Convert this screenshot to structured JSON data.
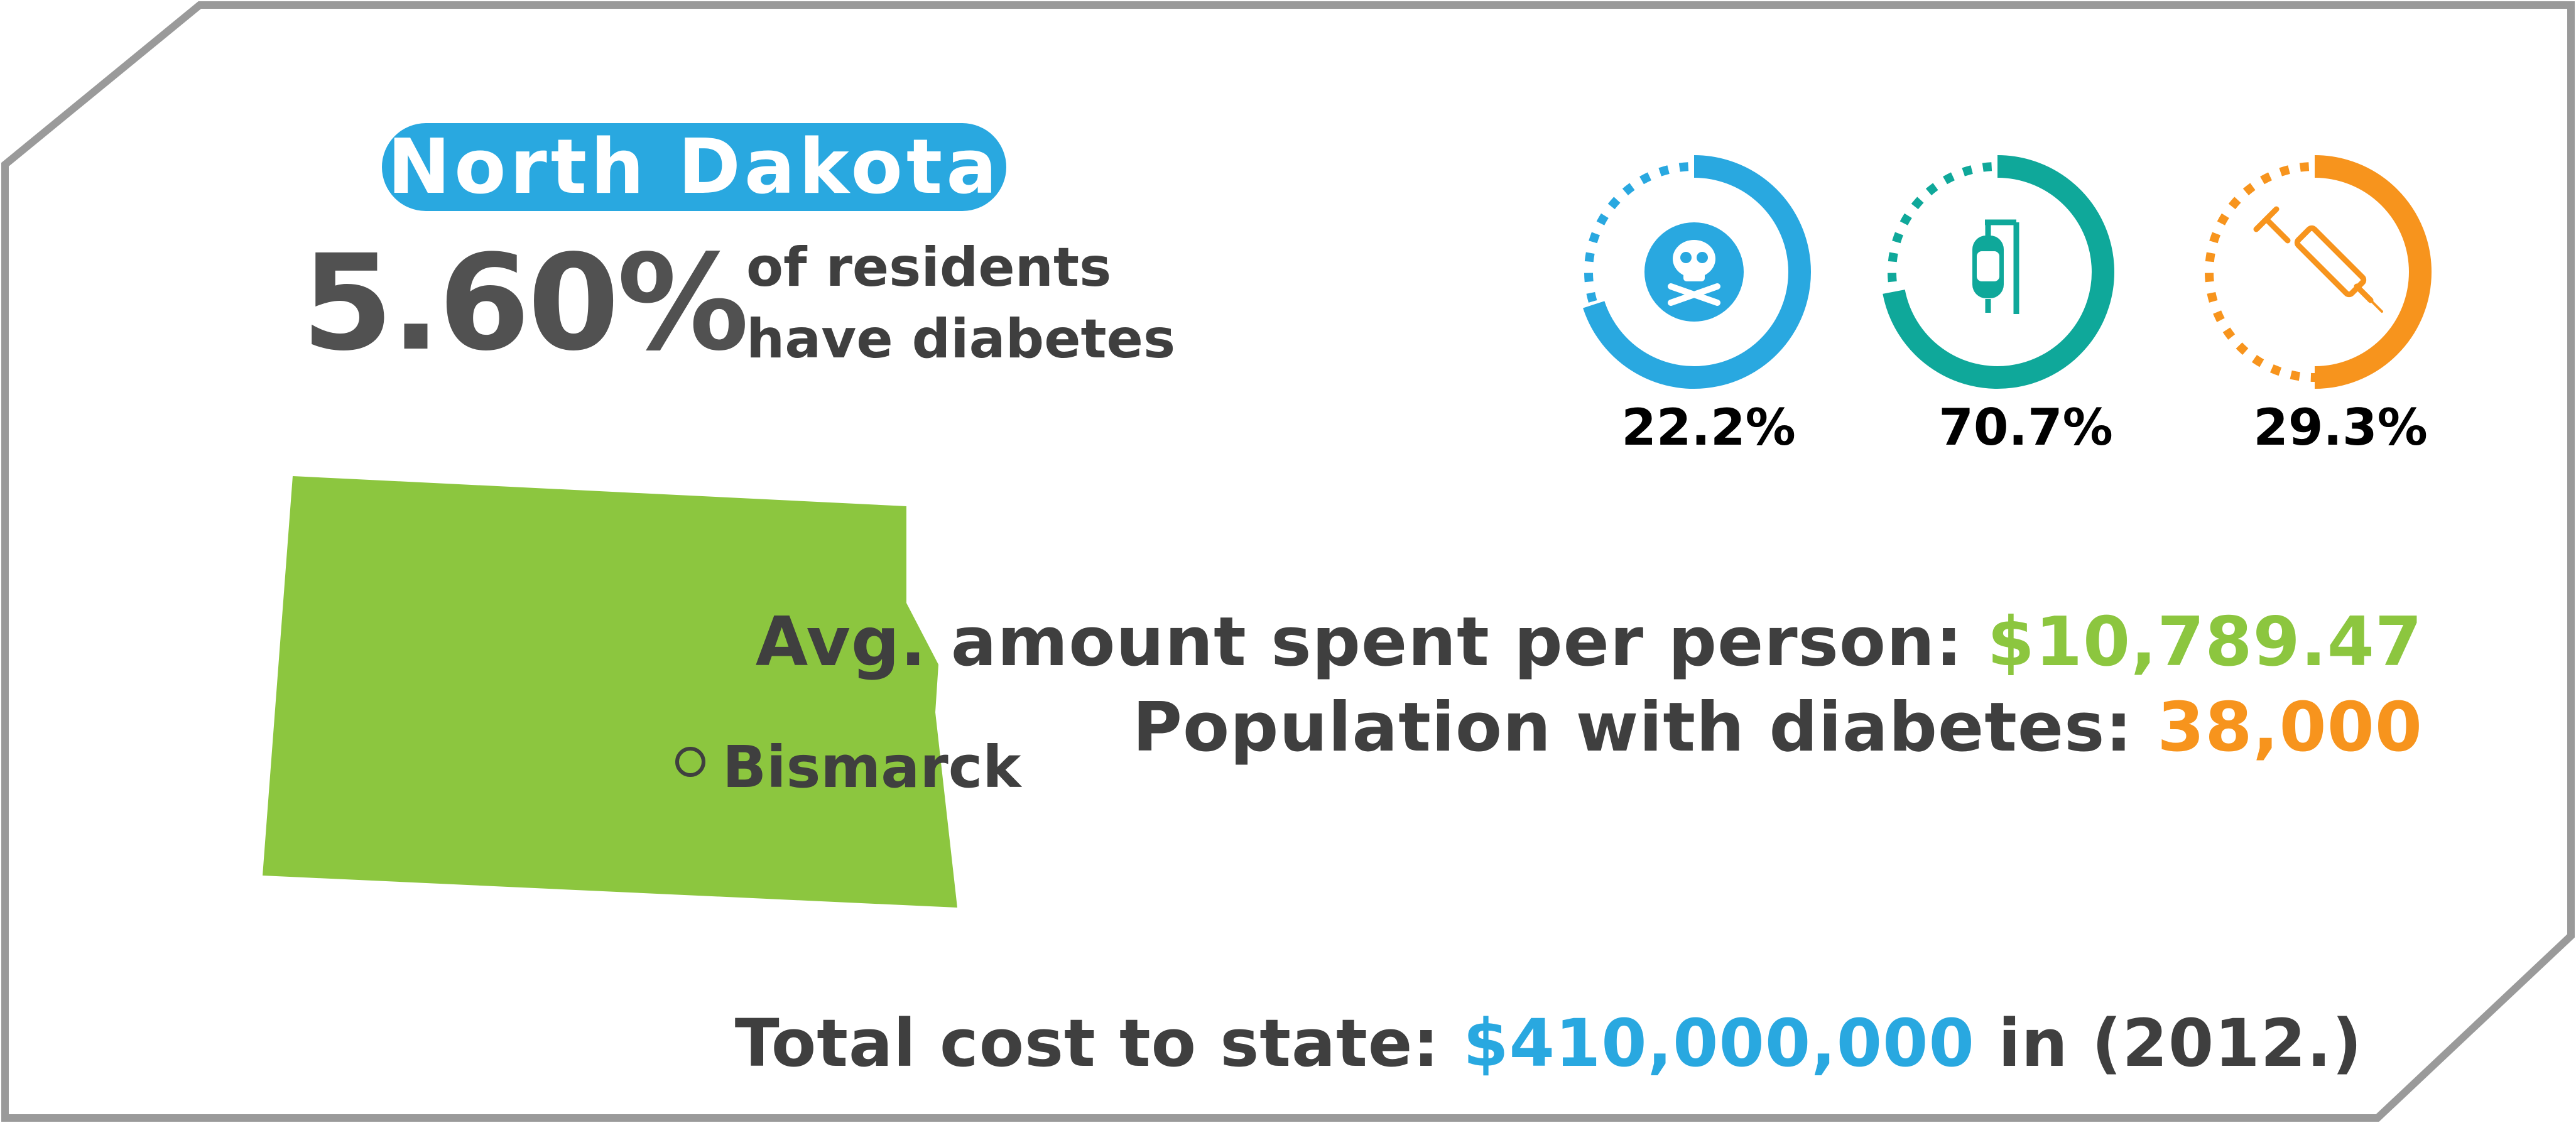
{
  "state": {
    "name": "North Dakota",
    "diabetes_rate": "5.60%",
    "rate_caption_line1": "of residents",
    "rate_caption_line2": "have diabetes",
    "capital": "Bismarck"
  },
  "rings": [
    {
      "icon": "skull-crossbones-icon",
      "value": 22.2,
      "label": "22.2%",
      "color": "#29a8e0"
    },
    {
      "icon": "iv-bag-icon",
      "value": 70.7,
      "label": "70.7%",
      "color": "#0fa89a"
    },
    {
      "icon": "syringe-icon",
      "value": 29.3,
      "label": "29.3%",
      "color": "#f7941d"
    }
  ],
  "stats": {
    "avg_label": "Avg. amount spent per person:",
    "avg_value": "$10,789.47",
    "pop_label": "Population with diabetes:",
    "pop_value": "38,000",
    "total_label": "Total cost to state:",
    "total_value": "$410,000,000",
    "total_suffix": "in (2012.)"
  },
  "colors": {
    "blue": "#29a8e0",
    "teal": "#0fa89a",
    "orange": "#f7941d",
    "green": "#8cc63f",
    "dark": "#3f3f3f",
    "frame": "#9a9a9a"
  }
}
